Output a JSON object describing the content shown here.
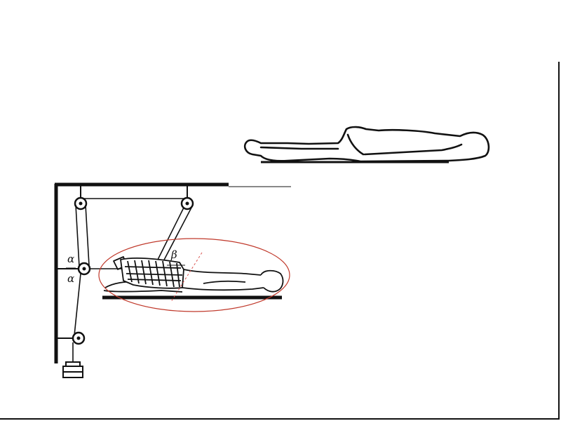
{
  "figure": {
    "angle_labels": {
      "alpha_upper": "α",
      "alpha_lower": "α",
      "beta": "β"
    },
    "colors": {
      "ink": "#111111",
      "highlight_ellipse": "#c0392b",
      "dashed_guide": "#d9534f",
      "background": "#ffffff"
    },
    "icons": {
      "pulley": "pulley-icon",
      "weight": "weight-icon"
    }
  }
}
